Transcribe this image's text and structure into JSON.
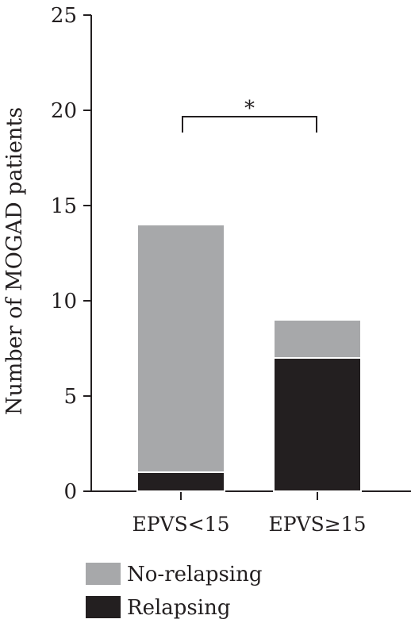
{
  "chart_data": {
    "type": "bar",
    "stacked": true,
    "categories": [
      "EPVS<15",
      "EPVS≥15"
    ],
    "series": [
      {
        "name": "Relapsing",
        "values": [
          1,
          7
        ],
        "color": "#231f20"
      },
      {
        "name": "No-relapsing",
        "values": [
          13,
          2
        ],
        "color": "#a7a8aa"
      }
    ],
    "xlabel": "",
    "ylabel": "Number of MOGAD patients",
    "ylim": [
      0,
      25
    ],
    "yticks": [
      0,
      5,
      10,
      15,
      20,
      25
    ],
    "grid": false,
    "legend_order": [
      "No-relapsing",
      "Relapsing"
    ],
    "legend_position": "bottom-left",
    "annotations": [
      {
        "text": "*",
        "type": "significance-bracket",
        "between": [
          "EPVS<15",
          "EPVS≥15"
        ]
      }
    ]
  }
}
